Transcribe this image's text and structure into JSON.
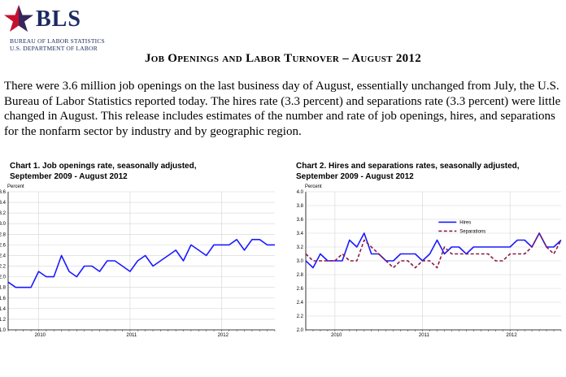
{
  "header": {
    "logo_word": "BLS",
    "agency": "BUREAU OF LABOR STATISTICS",
    "department": "U.S. DEPARTMENT OF LABOR"
  },
  "title": "Job Openings and Labor Turnover – August 2012",
  "intro": "There were 3.6 million job openings on the last business day of August, essentially unchanged from July, the U.S. Bureau of Labor Statistics reported today. The hires rate (3.3 percent) and separations rate (3.3 percent) were little changed in August. This release includes estimates of the number and rate of job openings, hires, and separations for the nonfarm sector by industry and by geographic region.",
  "colors": {
    "brand": "#1b2a63",
    "star": "#c8102e",
    "hires": "#1a1aff",
    "separations": "#8b1a4a",
    "grid": "#d4d4d4"
  },
  "chart_data": [
    {
      "type": "line",
      "title": "Chart 1. Job openings rate, seasonally adjusted,\nSeptember 2009 - August 2012",
      "ylabel": "Percent",
      "ylim": [
        1.0,
        3.6
      ],
      "yticks": [
        "1.0",
        "1.2",
        "1.4",
        "1.6",
        "1.8",
        "2.0",
        "2.2",
        "2.4",
        "2.6",
        "2.8",
        "3.0",
        "3.2",
        "3.4",
        "3.6"
      ],
      "xticks": [
        "2010",
        "2011",
        "2012"
      ],
      "x_start": "2009-09",
      "x_end": "2012-08",
      "grid": true,
      "series": [
        {
          "values": [
            1.9,
            1.8,
            1.8,
            1.8,
            2.1,
            2.0,
            2.0,
            2.4,
            2.1,
            2.0,
            2.2,
            2.2,
            2.1,
            2.3,
            2.3,
            2.2,
            2.1,
            2.3,
            2.4,
            2.2,
            2.3,
            2.4,
            2.5,
            2.3,
            2.6,
            2.5,
            2.4,
            2.6,
            2.6,
            2.6,
            2.7,
            2.5,
            2.7,
            2.7,
            2.6,
            2.6
          ]
        }
      ]
    },
    {
      "type": "line",
      "title": "Chart 2. Hires and separations rates, seasonally adjusted,\nSeptember 2009 - August 2012",
      "ylabel": "Percent",
      "ylim": [
        2.0,
        4.0
      ],
      "yticks": [
        "2.0",
        "2.2",
        "2.4",
        "2.6",
        "2.8",
        "3.0",
        "3.2",
        "3.4",
        "3.6",
        "3.8",
        "4.0"
      ],
      "xticks": [
        "2010",
        "2011",
        "2012"
      ],
      "x_start": "2009-09",
      "x_end": "2012-08",
      "grid": true,
      "legend": "upper-center",
      "series": [
        {
          "name": "Hires",
          "style": "solid",
          "values": [
            3.0,
            2.9,
            3.1,
            3.0,
            3.0,
            3.0,
            3.3,
            3.2,
            3.4,
            3.1,
            3.1,
            3.0,
            3.0,
            3.1,
            3.1,
            3.1,
            3.0,
            3.1,
            3.3,
            3.1,
            3.2,
            3.2,
            3.1,
            3.2,
            3.2,
            3.2,
            3.2,
            3.2,
            3.2,
            3.3,
            3.3,
            3.2,
            3.4,
            3.2,
            3.2,
            3.3
          ]
        },
        {
          "name": "Separations",
          "style": "dashed",
          "values": [
            3.1,
            3.0,
            3.0,
            3.0,
            3.0,
            3.1,
            3.0,
            3.0,
            3.3,
            3.2,
            3.1,
            3.0,
            2.9,
            3.0,
            3.0,
            2.9,
            3.0,
            3.0,
            2.9,
            3.2,
            3.1,
            3.1,
            3.1,
            3.1,
            3.1,
            3.1,
            3.0,
            3.0,
            3.1,
            3.1,
            3.1,
            3.2,
            3.4,
            3.2,
            3.1,
            3.3
          ]
        }
      ]
    }
  ]
}
